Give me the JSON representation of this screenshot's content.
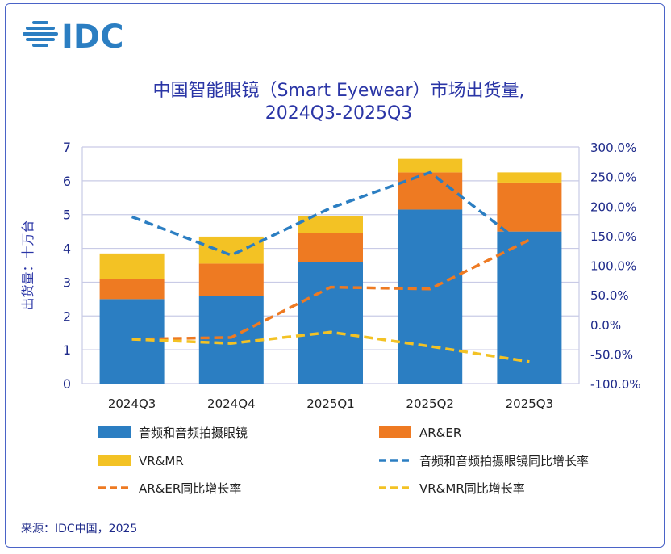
{
  "logo_text": "IDC",
  "title_line1": "中国智能眼镜（Smart Eyewear）市场出货量,",
  "title_line2": "2024Q3-2025Q3",
  "source": "来源：IDC中国，2025",
  "colors": {
    "audio": "#2b7ec2",
    "arer": "#ee7a22",
    "vrmr": "#f3c224",
    "title": "#2a35a6",
    "axis_text": "#1e2a8a",
    "grid": "#c9cbe6",
    "frame": "#4a63c7"
  },
  "chart_data": {
    "type": "bar",
    "stacked": true,
    "title": "中国智能眼镜（Smart Eyewear）市场出货量, 2024Q3-2025Q3",
    "categories": [
      "2024Q3",
      "2024Q4",
      "2025Q1",
      "2025Q2",
      "2025Q3"
    ],
    "ylabel": "出货量：十万台",
    "ylim": [
      0,
      7
    ],
    "yticks": [
      "0",
      "1",
      "2",
      "3",
      "4",
      "5",
      "6",
      "7"
    ],
    "y2lim": [
      -100,
      300
    ],
    "y2ticks": [
      "-100.0%",
      "-50.0%",
      "0.0%",
      "50.0%",
      "100.0%",
      "150.0%",
      "200.0%",
      "250.0%",
      "300.0%"
    ],
    "grid": true,
    "legend_position": "bottom",
    "series": [
      {
        "name": "音频和音频拍摄眼镜",
        "kind": "bar",
        "axis": "left",
        "values": [
          2.5,
          2.6,
          3.6,
          5.15,
          4.5
        ]
      },
      {
        "name": "AR&ER",
        "kind": "bar",
        "axis": "left",
        "values": [
          0.6,
          0.95,
          0.85,
          1.1,
          1.45
        ]
      },
      {
        "name": "VR&MR",
        "kind": "bar",
        "axis": "left",
        "values": [
          0.75,
          0.8,
          0.5,
          0.4,
          0.3
        ]
      },
      {
        "name": "音频和音频拍摄眼镜同比增长率",
        "kind": "line",
        "axis": "right",
        "values": [
          182,
          117,
          197,
          257,
          127
        ]
      },
      {
        "name": "AR&ER同比增长率",
        "kind": "line",
        "axis": "right",
        "values": [
          -25,
          -22,
          63,
          60,
          143
        ]
      },
      {
        "name": "VR&MR同比增长率",
        "kind": "line",
        "axis": "right",
        "values": [
          -25,
          -32,
          -13,
          -37,
          -63
        ]
      }
    ]
  }
}
